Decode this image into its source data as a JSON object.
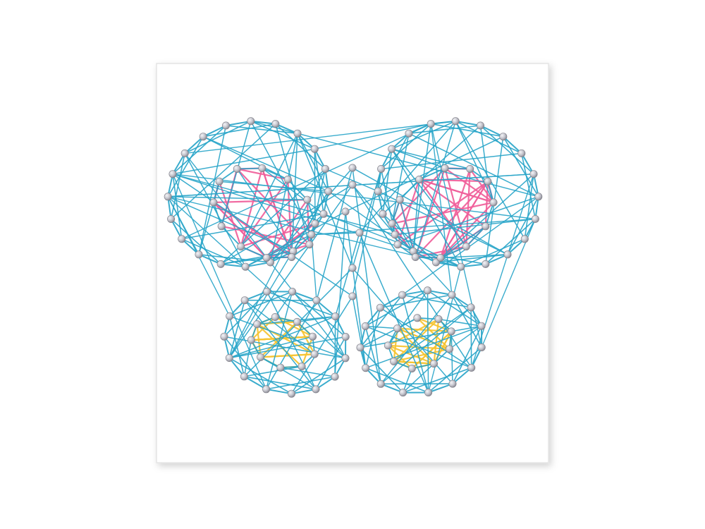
{
  "artwork": {
    "subject": "butterfly",
    "medium": "string-art",
    "background_color": "#ffffff",
    "board_color": "#ffffff",
    "board_shadow_color": "#d9d9d9",
    "colors": {
      "outline_thread": "#2aa6c9",
      "upper_wing_thread": "#f0609b",
      "lower_wing_thread": "#f6c431",
      "pin_head": "#c9c9cf"
    },
    "wings": [
      "upper-left-wing",
      "upper-right-wing",
      "lower-left-wing",
      "lower-right-wing"
    ]
  }
}
